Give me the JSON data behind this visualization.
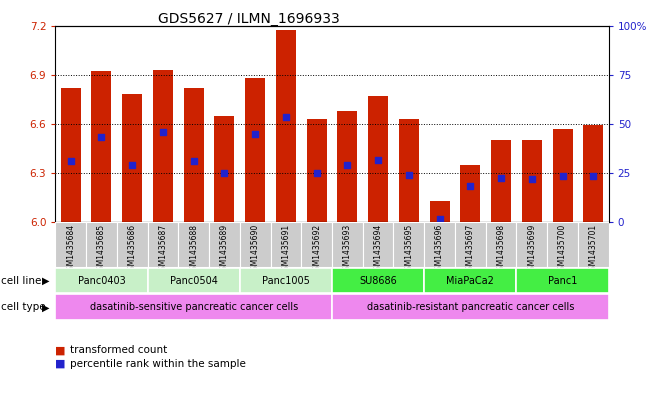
{
  "title": "GDS5627 / ILMN_1696933",
  "samples": [
    "GSM1435684",
    "GSM1435685",
    "GSM1435686",
    "GSM1435687",
    "GSM1435688",
    "GSM1435689",
    "GSM1435690",
    "GSM1435691",
    "GSM1435692",
    "GSM1435693",
    "GSM1435694",
    "GSM1435695",
    "GSM1435696",
    "GSM1435697",
    "GSM1435698",
    "GSM1435699",
    "GSM1435700",
    "GSM1435701"
  ],
  "bar_values": [
    6.82,
    6.92,
    6.78,
    6.93,
    6.82,
    6.65,
    6.88,
    7.17,
    6.63,
    6.68,
    6.77,
    6.63,
    6.13,
    6.35,
    6.5,
    6.5,
    6.57,
    6.59
  ],
  "percentile_values": [
    6.37,
    6.52,
    6.35,
    6.55,
    6.37,
    6.3,
    6.54,
    6.64,
    6.3,
    6.35,
    6.38,
    6.29,
    6.02,
    6.22,
    6.27,
    6.26,
    6.28,
    6.28
  ],
  "ylim": [
    6.0,
    7.2
  ],
  "yticks": [
    6.0,
    6.3,
    6.6,
    6.9,
    7.2
  ],
  "right_yticks": [
    0,
    25,
    50,
    75,
    100
  ],
  "bar_color": "#cc2200",
  "dot_color": "#2222cc",
  "bar_width": 0.65,
  "cell_lines": [
    {
      "label": "Panc0403",
      "start": 0,
      "end": 2,
      "color": "#c8f0c8"
    },
    {
      "label": "Panc0504",
      "start": 3,
      "end": 5,
      "color": "#c8f0c8"
    },
    {
      "label": "Panc1005",
      "start": 6,
      "end": 8,
      "color": "#c8f0c8"
    },
    {
      "label": "SU8686",
      "start": 9,
      "end": 11,
      "color": "#44ee44"
    },
    {
      "label": "MiaPaCa2",
      "start": 12,
      "end": 14,
      "color": "#44ee44"
    },
    {
      "label": "Panc1",
      "start": 15,
      "end": 17,
      "color": "#44ee44"
    }
  ],
  "cell_types": [
    {
      "label": "dasatinib-sensitive pancreatic cancer cells",
      "start": 0,
      "end": 8,
      "color": "#ee88ee"
    },
    {
      "label": "dasatinib-resistant pancreatic cancer cells",
      "start": 9,
      "end": 17,
      "color": "#ee88ee"
    }
  ],
  "cell_line_label": "cell line",
  "cell_type_label": "cell type",
  "legend_items": [
    {
      "label": "transformed count",
      "color": "#cc2200"
    },
    {
      "label": "percentile rank within the sample",
      "color": "#2222cc"
    }
  ],
  "title_fontsize": 10,
  "ylabel_color_left": "#cc2200",
  "ylabel_color_right": "#2222cc",
  "xtick_bg_color": "#cccccc"
}
